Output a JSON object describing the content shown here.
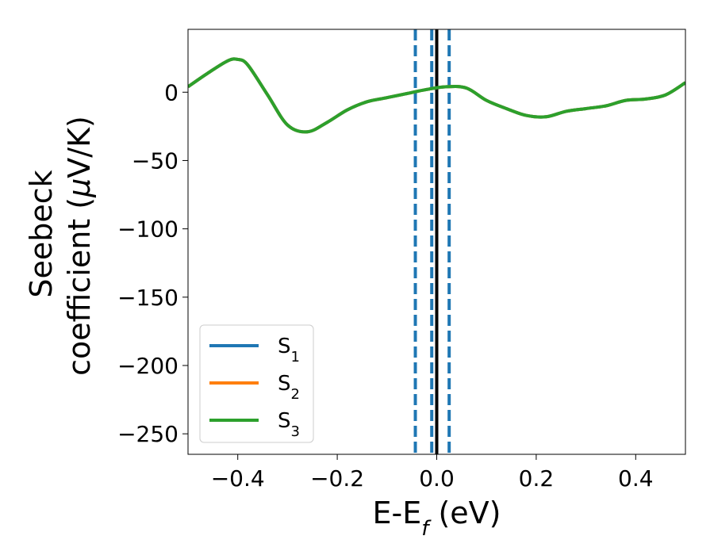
{
  "chart_data": {
    "type": "line",
    "xlabel": {
      "main": "E-E",
      "sub": "f",
      "unit": " (eV)"
    },
    "ylabel": {
      "line1": "Seebeck",
      "line2_prefix": "coefficient  (",
      "mu": "μ",
      "line2_suffix": "V/K)"
    },
    "xlim": [
      -0.5,
      0.5
    ],
    "ylim": [
      -265,
      46
    ],
    "xticks": [
      -0.4,
      -0.2,
      0.0,
      0.2,
      0.4
    ],
    "xtick_labels": [
      "−0.4",
      "−0.2",
      "0.0",
      "0.2",
      "0.4"
    ],
    "yticks": [
      0,
      -50,
      -100,
      -150,
      -200,
      -250
    ],
    "ytick_labels": [
      "0",
      "−50",
      "−100",
      "−150",
      "−200",
      "−250"
    ],
    "grid": false,
    "legend_position": "lower-left",
    "series": [
      {
        "name": "S",
        "sub": "1",
        "color": "#1f77b4",
        "x": [
          -0.5,
          -0.46,
          -0.42,
          -0.4,
          -0.38,
          -0.34,
          -0.3,
          -0.26,
          -0.22,
          -0.18,
          -0.14,
          -0.1,
          -0.06,
          -0.02,
          0.02,
          0.06,
          0.1,
          0.14,
          0.18,
          0.22,
          0.26,
          0.3,
          0.34,
          0.38,
          0.42,
          0.46,
          0.5
        ],
        "values": [
          4,
          14,
          23,
          24,
          20,
          -2,
          -24,
          -29,
          -22,
          -13,
          -7,
          -4,
          -1,
          2,
          4,
          3,
          -6,
          -12,
          -17,
          -18,
          -14,
          -12,
          -10,
          -6,
          -5,
          -2,
          7
        ]
      },
      {
        "name": "S",
        "sub": "2",
        "color": "#ff7f0e",
        "x": [
          -0.5,
          -0.46,
          -0.42,
          -0.4,
          -0.38,
          -0.34,
          -0.3,
          -0.26,
          -0.22,
          -0.18,
          -0.14,
          -0.1,
          -0.06,
          -0.02,
          0.02,
          0.06,
          0.1,
          0.14,
          0.18,
          0.22,
          0.26,
          0.3,
          0.34,
          0.38,
          0.42,
          0.46,
          0.5
        ],
        "values": [
          4,
          14,
          23,
          24,
          20,
          -2,
          -24,
          -29,
          -22,
          -13,
          -7,
          -4,
          -1,
          2,
          4,
          3,
          -6,
          -12,
          -17,
          -18,
          -14,
          -12,
          -10,
          -6,
          -5,
          -2,
          7
        ]
      },
      {
        "name": "S",
        "sub": "3",
        "color": "#2ca02c",
        "x": [
          -0.5,
          -0.46,
          -0.42,
          -0.4,
          -0.38,
          -0.34,
          -0.3,
          -0.26,
          -0.22,
          -0.18,
          -0.14,
          -0.1,
          -0.06,
          -0.02,
          0.02,
          0.06,
          0.1,
          0.14,
          0.18,
          0.22,
          0.26,
          0.3,
          0.34,
          0.38,
          0.42,
          0.46,
          0.5
        ],
        "values": [
          4,
          14,
          23,
          24,
          20,
          -2,
          -24,
          -29,
          -22,
          -13,
          -7,
          -4,
          -1,
          2,
          4,
          3,
          -6,
          -12,
          -17,
          -18,
          -14,
          -12,
          -10,
          -6,
          -5,
          -2,
          7
        ]
      }
    ],
    "vlines": [
      {
        "x": 0.0,
        "color": "#000000",
        "style": "solid"
      },
      {
        "x": -0.043,
        "color": "#1f77b4",
        "style": "dashed"
      },
      {
        "x": -0.01,
        "color": "#1f77b4",
        "style": "dashed"
      },
      {
        "x": 0.025,
        "color": "#1f77b4",
        "style": "dashed"
      }
    ]
  }
}
